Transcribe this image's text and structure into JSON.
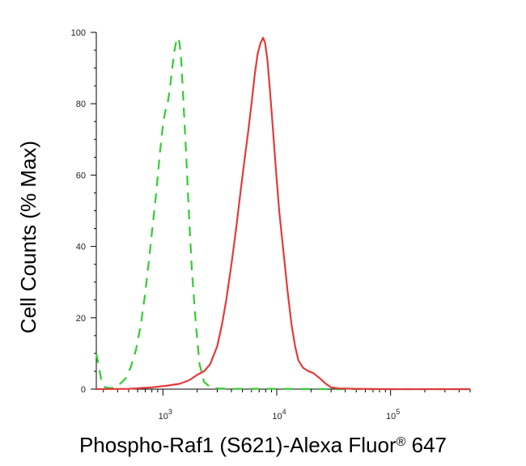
{
  "chart_data": {
    "type": "line",
    "title": "",
    "xlabel": "Phospho-Raf1 (S621)-Alexa Fluor",
    "xlabel_superscript": "®",
    "xlabel_suffix": " 647",
    "ylabel": "Cell Counts (% Max)",
    "x_scale": "log",
    "xlim": [
      260,
      500000
    ],
    "ylim": [
      0,
      100
    ],
    "grid": false,
    "legend": "none",
    "x_ticks": [
      {
        "value": 1000,
        "base": "10",
        "exp": "3"
      },
      {
        "value": 10000,
        "base": "10",
        "exp": "4"
      },
      {
        "value": 100000,
        "base": "10",
        "exp": "5"
      }
    ],
    "y_ticks": [
      {
        "value": 0,
        "label": "0"
      },
      {
        "value": 20,
        "label": "20"
      },
      {
        "value": 40,
        "label": "40"
      },
      {
        "value": 60,
        "label": "60"
      },
      {
        "value": 80,
        "label": "80"
      },
      {
        "value": 100,
        "label": "100"
      }
    ],
    "series": [
      {
        "color": "#33cc33",
        "line_style": "dashed",
        "x": [
          260,
          275,
          290,
          310,
          350,
          380,
          420,
          470,
          520,
          580,
          640,
          700,
          760,
          820,
          880,
          940,
          1000,
          1050,
          1100,
          1150,
          1200,
          1250,
          1300,
          1350,
          1400,
          1450,
          1500,
          1600,
          1700,
          1800,
          1950,
          2100,
          2300,
          2600,
          3000,
          4000,
          6000,
          10000,
          30000,
          100000,
          500000
        ],
        "y": [
          10,
          6,
          2,
          0.5,
          0.3,
          0.5,
          1.5,
          3,
          6,
          11,
          18,
          27,
          37,
          47,
          56,
          66,
          74,
          78,
          80,
          84,
          89,
          94,
          97,
          98.5,
          97,
          92,
          83,
          66,
          48,
          33,
          18,
          7,
          2,
          0.6,
          0.2,
          0.1,
          0.1,
          0.1,
          0,
          0,
          0
        ]
      },
      {
        "color": "#e23b3b",
        "line_style": "solid",
        "x": [
          260,
          500,
          800,
          1100,
          1400,
          1700,
          2000,
          2300,
          2600,
          3000,
          3300,
          3600,
          4000,
          4400,
          4800,
          5200,
          5600,
          6000,
          6400,
          6800,
          7200,
          7600,
          7900,
          8300,
          8700,
          9200,
          9800,
          10500,
          11500,
          12500,
          13500,
          14500,
          15500,
          17000,
          19000,
          21000,
          24000,
          27000,
          30000,
          35000,
          50000,
          100000,
          500000
        ],
        "y": [
          0,
          0.1,
          0.5,
          1,
          1.5,
          2.5,
          4,
          5,
          7,
          12,
          18,
          25,
          35,
          45,
          55,
          64,
          72,
          80,
          88,
          94,
          97,
          98.5,
          97,
          92,
          84,
          74,
          62,
          50,
          38,
          27,
          18,
          12,
          8,
          6,
          5,
          4.5,
          3,
          1.5,
          0.5,
          0.2,
          0.1,
          0,
          0
        ]
      }
    ]
  }
}
